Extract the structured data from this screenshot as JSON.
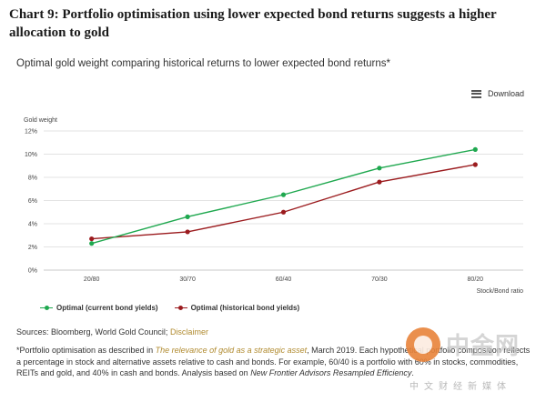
{
  "heading": "Chart 9: Portfolio optimisation using lower expected bond returns suggests a higher allocation to gold",
  "download_label": "Download",
  "colors": {
    "current": "#1fa84f",
    "historical": "#9b1b1e",
    "grid": "#e3e3e3",
    "link": "#b08a2e"
  },
  "chart_data": {
    "type": "line",
    "title": "Optimal gold weight comparing historical returns to lower expected bond returns*",
    "ylabel": "Gold weight",
    "xlabel": "Stock/Bond ratio",
    "categories": [
      "20/80",
      "30/70",
      "60/40",
      "70/30",
      "80/20"
    ],
    "ylim": [
      0,
      12
    ],
    "yticks": [
      "0%",
      "2%",
      "4%",
      "6%",
      "8%",
      "10%",
      "12%"
    ],
    "grid": true,
    "legend": "bottom-left",
    "series": [
      {
        "name": "Optimal (current bond yields)",
        "values": [
          2.3,
          4.6,
          6.5,
          8.8,
          10.4
        ],
        "color": "#1fa84f"
      },
      {
        "name": "Optimal (historical bond yields)",
        "values": [
          2.7,
          3.3,
          5.0,
          7.6,
          9.1
        ],
        "color": "#9b1b1e"
      }
    ]
  },
  "sources": {
    "label": "Sources: Bloomberg, World Gold Council;",
    "disclaimer": "Disclaimer"
  },
  "footnote": {
    "before": "*Portfolio optimisation as described in ",
    "link": "The relevance of gold as a strategic asset",
    "middle": ", March 2019. Each hypothetical portfolio composition reflects a percentage in stock and alternative assets relative to cash and bonds. For example, 60/40 is a portfolio with 60% in stocks, commodities, REITs and gold, and 40% in cash and bonds. Analysis based on ",
    "italic": "New Frontier Advisors Resampled Efficiency",
    "after": "."
  },
  "watermark": {
    "text": "中金网",
    "sub": "中文财经新媒体"
  }
}
